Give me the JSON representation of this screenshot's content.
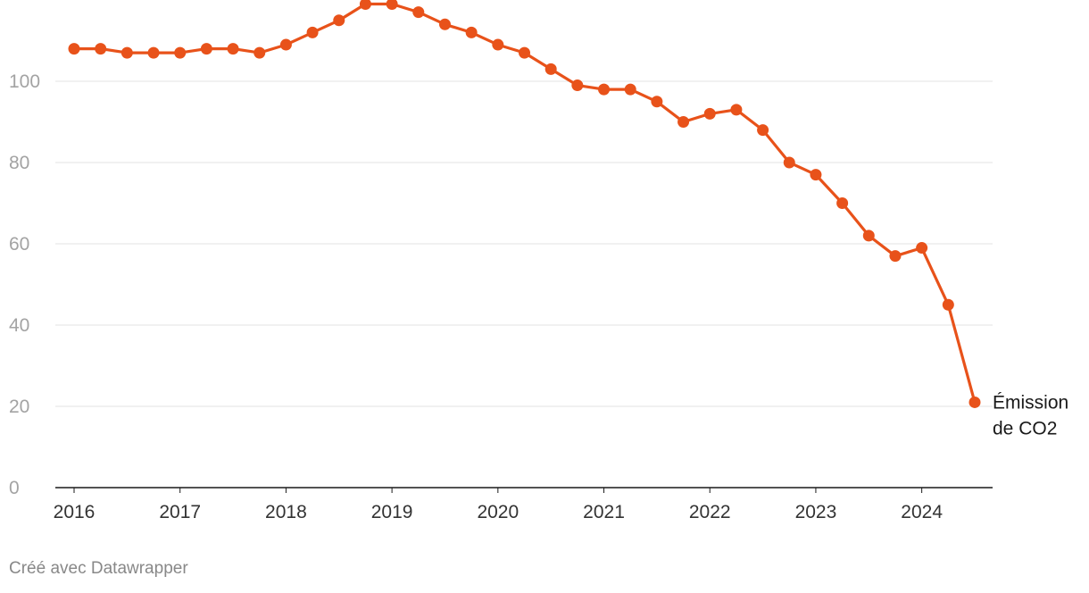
{
  "chart_data": {
    "type": "line",
    "title": "",
    "xlabel": "",
    "ylabel": "",
    "xlim": [
      2016,
      2024.5
    ],
    "ylim": [
      0,
      120
    ],
    "y_ticks": [
      0,
      20,
      40,
      60,
      80,
      100
    ],
    "x_ticks": [
      2016,
      2017,
      2018,
      2019,
      2020,
      2021,
      2022,
      2023,
      2024
    ],
    "x_tick_labels": [
      "2016",
      "2017",
      "2018",
      "2019",
      "2020",
      "2021",
      "2022",
      "2023",
      "2024"
    ],
    "grid": true,
    "series": [
      {
        "name": "Émission de CO2",
        "label_lines": [
          "Émission",
          "de CO2"
        ],
        "color": "#e8521a",
        "x": [
          2016,
          2016.25,
          2016.5,
          2016.75,
          2017,
          2017.25,
          2017.5,
          2017.75,
          2018,
          2018.25,
          2018.5,
          2018.75,
          2019,
          2019.25,
          2019.5,
          2019.75,
          2020,
          2020.25,
          2020.5,
          2020.75,
          2021,
          2021.25,
          2021.5,
          2021.75,
          2022,
          2022.25,
          2022.5,
          2022.75,
          2023,
          2023.25,
          2023.5,
          2023.75,
          2024,
          2024.25,
          2024.5
        ],
        "values": [
          108,
          108,
          107,
          107,
          107,
          108,
          108,
          107,
          109,
          112,
          115,
          119,
          119,
          117,
          114,
          112,
          109,
          107,
          103,
          99,
          98,
          98,
          95,
          90,
          92,
          93,
          88,
          80,
          77,
          70,
          62,
          57,
          59,
          45,
          21
        ]
      }
    ]
  },
  "credit": "Créé avec Datawrapper"
}
